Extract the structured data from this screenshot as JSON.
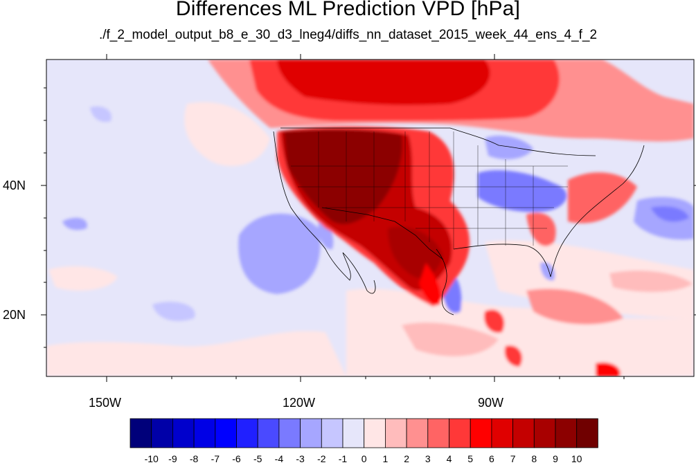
{
  "title": "Differences ML Prediction VPD [hPa]",
  "subtitle": "./f_2_model_output_b8_e_30_d3_lneg4/diffs_nn_dataset_2015_week_44_ens_4_f_2",
  "axes": {
    "lon_labels": [
      "150W",
      "120W",
      "90W"
    ],
    "lat_labels": [
      "40N",
      "20N"
    ]
  },
  "colorbar": {
    "labels": [
      "-10",
      "-9",
      "-8",
      "-7",
      "-6",
      "-5",
      "-4",
      "-3",
      "-2",
      "-1",
      "0",
      "1",
      "2",
      "3",
      "4",
      "5",
      "6",
      "7",
      "8",
      "9",
      "10"
    ],
    "colors": [
      "#00007a",
      "#0000a8",
      "#0000cc",
      "#0000e6",
      "#0000ff",
      "#2020ff",
      "#4a4aff",
      "#7a7aff",
      "#a6a6ff",
      "#c6c6ff",
      "#e6e6fa",
      "#ffe6e6",
      "#ffbcbc",
      "#ff9090",
      "#ff6464",
      "#ff3838",
      "#ff0000",
      "#e00000",
      "#c40000",
      "#a80000",
      "#8c0000",
      "#700000"
    ]
  }
}
